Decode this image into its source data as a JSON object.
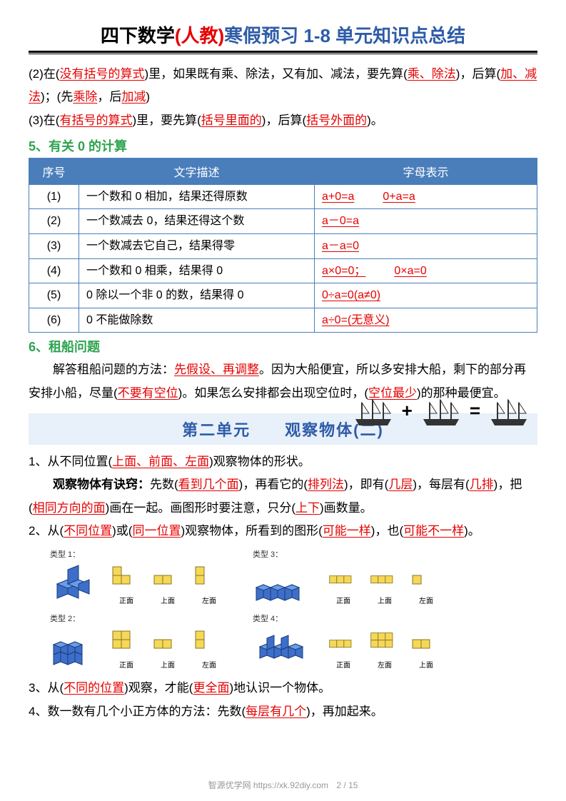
{
  "title": {
    "p1": "四下数学",
    "p2": "(人教)",
    "p3": "寒假预习 1-8 单元知识点总结"
  },
  "rule2_pre": "(2)在(",
  "rule2_k1": "没有括号的算式",
  "rule2_mid1": ")里，如果既有乘、除法，又有加、减法，要先算(",
  "rule2_k2": "乘、除法",
  "rule2_mid2": ")，后算(",
  "rule2_k3": "加、减法",
  "rule2_mid3": ")；(先",
  "rule2_k4": "乘除",
  "rule2_mid4": "，后",
  "rule2_k5": "加减",
  "rule2_end": ")",
  "rule3_pre": "(3)在(",
  "rule3_k1": "有括号的算式",
  "rule3_mid1": ")里，要先算(",
  "rule3_k2": "括号里面的",
  "rule3_mid2": ")，后算(",
  "rule3_k3": "括号外面的",
  "rule3_end": ")。",
  "sec5_title": "5、有关 0 的计算",
  "table": {
    "headers": [
      "序号",
      "文字描述",
      "字母表示"
    ],
    "rows": [
      {
        "n": "(1)",
        "d": "一个数和 0 相加，结果还得原数",
        "f": "a+0=a",
        "f2": "0+a=a"
      },
      {
        "n": "(2)",
        "d": "一个数减去 0，结果还得这个数",
        "f": "a－0=a"
      },
      {
        "n": "(3)",
        "d": "一个数减去它自己，结果得零",
        "f": "a－a=0"
      },
      {
        "n": "(4)",
        "d": "一个数和 0 相乘，结果得 0",
        "f": "a×0=0；",
        "f2": "0×a=0"
      },
      {
        "n": "(5)",
        "d": "0 除以一个非 0 的数，结果得 0",
        "f": "0÷a=0(a≠0)"
      },
      {
        "n": "(6)",
        "d": "0 不能做除数",
        "f": "a÷0=(无意义)"
      }
    ]
  },
  "sec6_title": "6、租船问题",
  "sec6_pre": "解答租船问题的方法：",
  "sec6_k1": "先假设、再调整",
  "sec6_mid1": "。因为大船便宜，所以多安排大船，剩下的部分再安排小船，尽量(",
  "sec6_k2": "不要有空位",
  "sec6_mid2": ")。如果怎么安排都会出现空位时，(",
  "sec6_k3": "空位最少",
  "sec6_end": ")的那种最便宜。",
  "ship_plus": "+",
  "ship_eq": "=",
  "unit2_title": "第二单元　　观察物体(二)",
  "p1_pre": "1、从不同位置(",
  "p1_k1": "上面、前面、左面",
  "p1_end": ")观察物体的形状。",
  "p2_bold": "观察物体有诀窍：",
  "p2_pre": "先数(",
  "p2_k1": "看到几个面",
  "p2_mid1": ")，再看它的(",
  "p2_k2": "排列法",
  "p2_mid2": ")，即有(",
  "p2_k3": "几层",
  "p2_mid3": ")，每层有(",
  "p2_k4": "几排",
  "p2_mid4": ")，把(",
  "p2_k5": "相同方向的面",
  "p2_mid5": ")画在一起。画图形时要注意，只分(",
  "p2_k6": "上下",
  "p2_end": ")画数量。",
  "p3_pre": "2、从(",
  "p3_k1": "不同位置",
  "p3_mid1": ")或(",
  "p3_k2": "同一位置",
  "p3_mid2": ")观察物体，所看到的图形(",
  "p3_k3": "可能一样",
  "p3_mid3": ")，也(",
  "p3_k4": "可能不一样",
  "p3_end": ")。",
  "cube_labels": {
    "type1": "类型 1：",
    "type2": "类型 2：",
    "type3": "类型 3：",
    "type4": "类型 4：",
    "front": "正面",
    "top": "上面",
    "left": "左面"
  },
  "p4_pre": "3、从(",
  "p4_k1": "不同的位置",
  "p4_mid": ")观察，才能(",
  "p4_k2": "更全面",
  "p4_end": ")地认识一个物体。",
  "p5_pre": "4、数一数有几个小正方体的方法：先数(",
  "p5_k1": "每层有几个",
  "p5_end": ")，再加起来。",
  "footer_text": "智源优学网 https://xk.92diy.com",
  "footer_page": "2 / 15",
  "colors": {
    "red": "#e60000",
    "blue": "#2e5ca8",
    "green": "#2ea44f",
    "table_header": "#4a7ebb",
    "banner_bg": "#e8f0fa",
    "cube_fill": "#3d6fc9",
    "cube_edge": "#1a3a7a",
    "flat_fill": "#f5d858",
    "flat_edge": "#8a7420"
  }
}
